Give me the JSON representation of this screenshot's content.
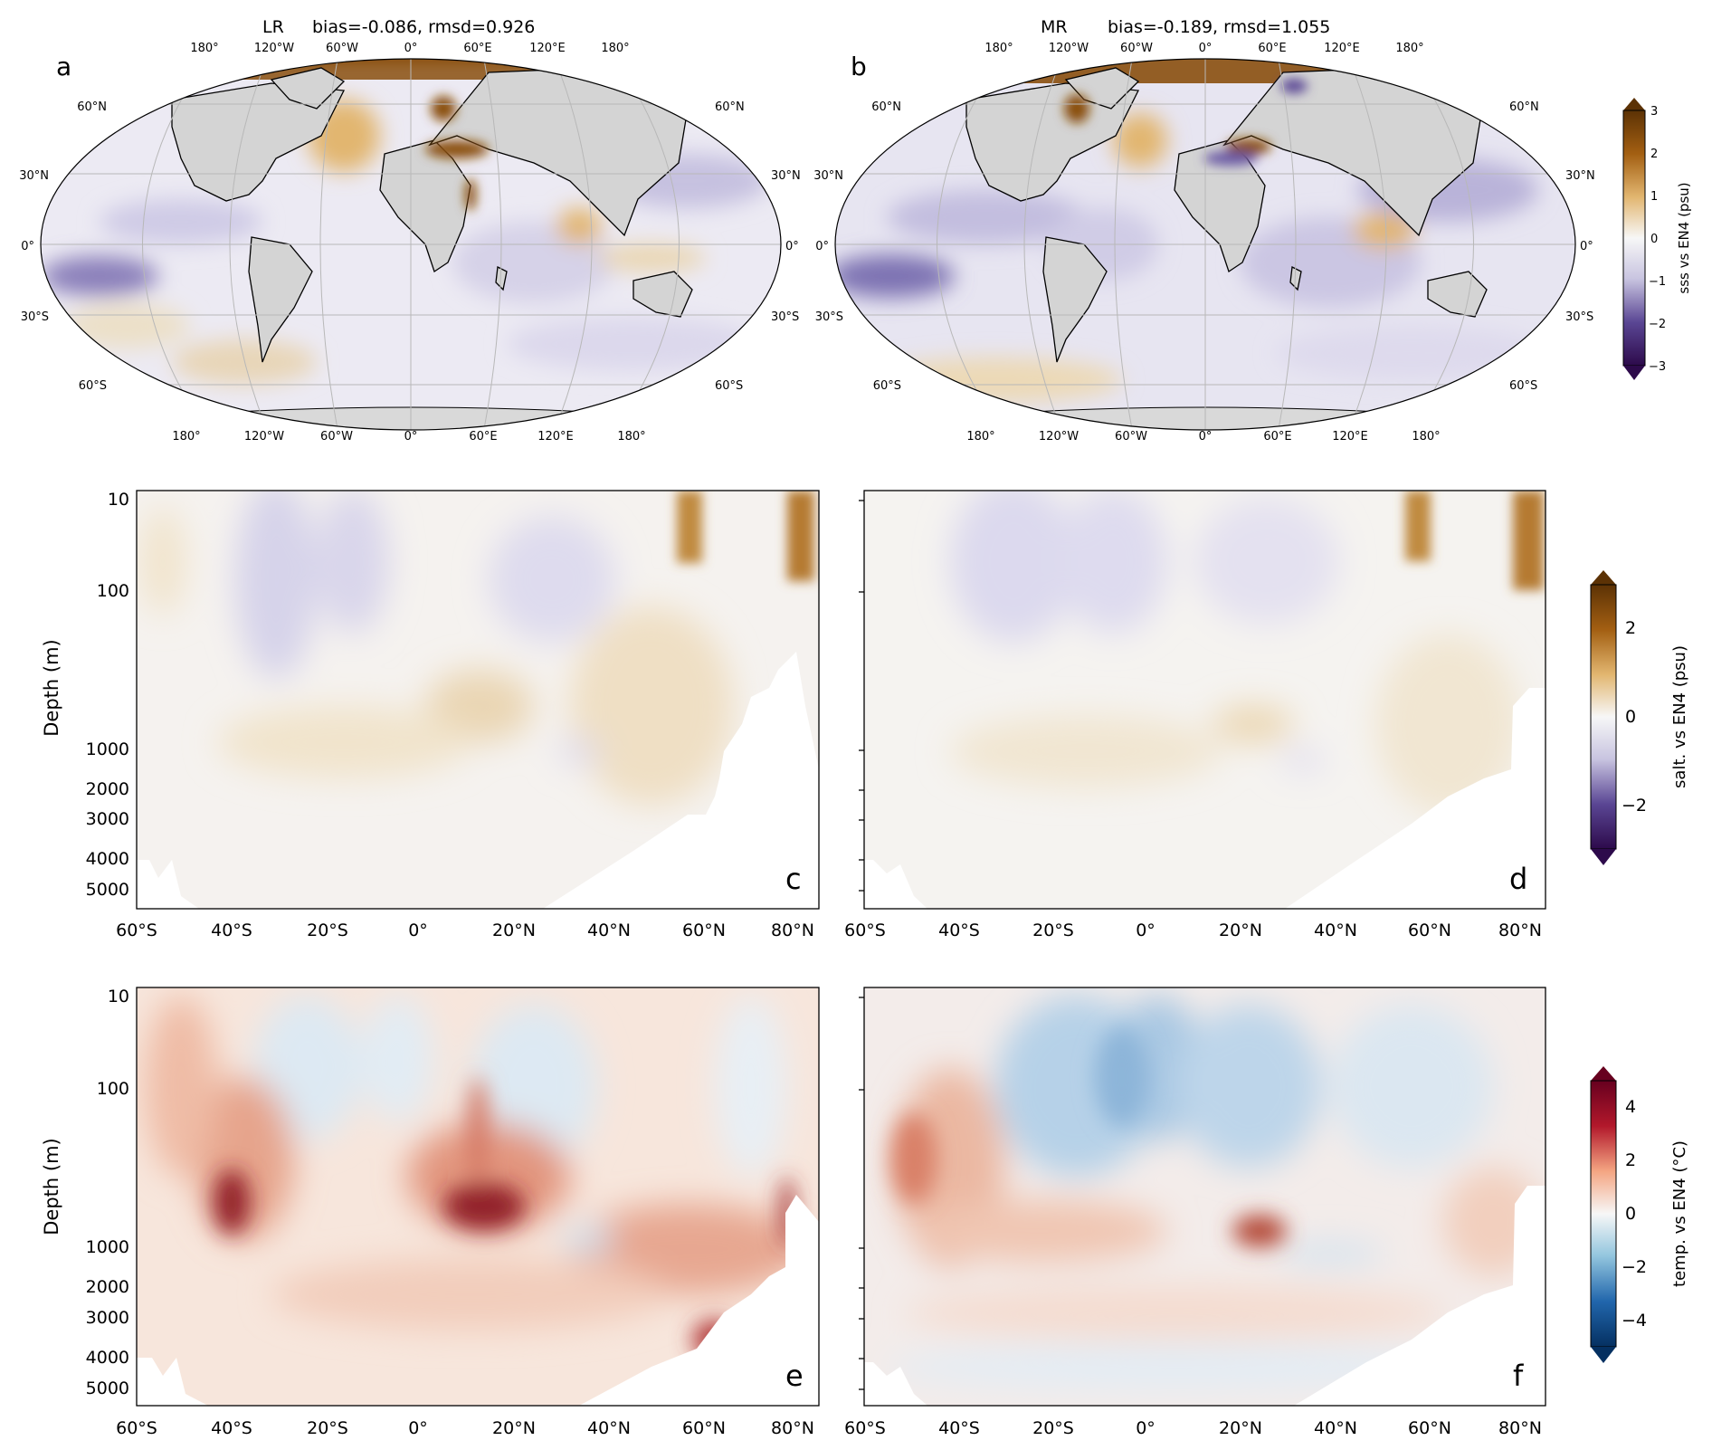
{
  "colors": {
    "brown_dark": "#5c3205",
    "brown": "#a35f12",
    "tan": "#e2b670",
    "white": "#f7f7f7",
    "lavender": "#c8c4e0",
    "purple": "#5a4694",
    "purple_dark": "#2d0a4b",
    "red_dark": "#67001f",
    "red": "#c2463c",
    "peach": "#f4c3a8",
    "lightblue": "#b7d4ea",
    "blue": "#3d85c0",
    "blue_dark": "#053061",
    "land": "#d4d4d4"
  },
  "chart_data": [
    {
      "id": "a",
      "type": "heatmap",
      "panel_letter": "a",
      "title_model": "LR",
      "title_stats": "bias=-0.086, rmsd=0.926",
      "top_lon_ticks": [
        "180°",
        "120°W",
        "60°W",
        "0°",
        "60°E",
        "120°E",
        "180°"
      ],
      "bottom_lon_ticks": [
        "180°",
        "120°W",
        "60°W",
        "0°",
        "60°E",
        "120°E",
        "180°"
      ],
      "left_lat_ticks": [
        "60°N",
        "30°N",
        "0°",
        "30°S",
        "60°S"
      ],
      "right_lat_ticks": [
        "60°N",
        "30°N",
        "0°",
        "30°S",
        "60°S"
      ],
      "bias": -0.086,
      "rmsd": 0.926
    },
    {
      "id": "b",
      "type": "heatmap",
      "panel_letter": "b",
      "title_model": "MR",
      "title_stats": "bias=-0.189, rmsd=1.055",
      "top_lon_ticks": [
        "180°",
        "120°W",
        "60°W",
        "0°",
        "60°E",
        "120°E",
        "180°"
      ],
      "bottom_lon_ticks": [
        "180°",
        "120°W",
        "60°W",
        "0°",
        "60°E",
        "120°E",
        "180°"
      ],
      "left_lat_ticks": [
        "60°N",
        "30°N",
        "0°",
        "30°S",
        "60°S"
      ],
      "right_lat_ticks": [
        "60°N",
        "30°N",
        "0°",
        "30°S",
        "60°S"
      ],
      "bias": -0.189,
      "rmsd": 1.055
    },
    {
      "id": "c",
      "type": "heatmap",
      "panel_letter": "c",
      "ylabel": "Depth (m)",
      "yticks": [
        "10",
        "100",
        "1000",
        "2000",
        "3000",
        "4000",
        "5000"
      ],
      "xticks": [
        "60°S",
        "40°S",
        "20°S",
        "0°",
        "20°N",
        "40°N",
        "60°N",
        "80°N"
      ]
    },
    {
      "id": "d",
      "type": "heatmap",
      "panel_letter": "d",
      "xticks": [
        "60°S",
        "40°S",
        "20°S",
        "0°",
        "20°N",
        "40°N",
        "60°N",
        "80°N"
      ]
    },
    {
      "id": "e",
      "type": "heatmap",
      "panel_letter": "e",
      "ylabel": "Depth (m)",
      "yticks": [
        "10",
        "100",
        "1000",
        "2000",
        "3000",
        "4000",
        "5000"
      ],
      "xticks": [
        "60°S",
        "40°S",
        "20°S",
        "0°",
        "20°N",
        "40°N",
        "60°N",
        "80°N"
      ]
    },
    {
      "id": "f",
      "type": "heatmap",
      "panel_letter": "f",
      "xticks": [
        "60°S",
        "40°S",
        "20°S",
        "0°",
        "20°N",
        "40°N",
        "60°N",
        "80°N"
      ]
    }
  ],
  "colorbars": [
    {
      "id": "sss",
      "label": "sss vs EN4 (psu)",
      "ticks": [
        "3",
        "2",
        "1",
        "0",
        "−1",
        "−2",
        "−3"
      ],
      "range": [
        -3,
        3
      ]
    },
    {
      "id": "salt",
      "label": "salt. vs EN4 (psu)",
      "ticks": [
        "2",
        "0",
        "−2"
      ],
      "range": [
        -3,
        3
      ]
    },
    {
      "id": "temp",
      "label": "temp. vs EN4 (°C)",
      "ticks": [
        "4",
        "2",
        "0",
        "−2",
        "−4"
      ],
      "range": [
        -5,
        5
      ]
    }
  ]
}
